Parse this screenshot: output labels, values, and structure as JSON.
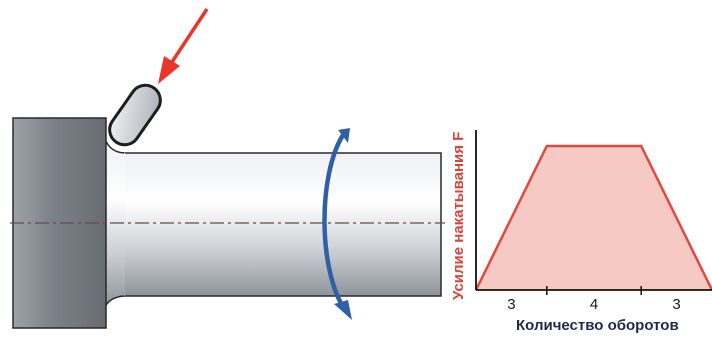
{
  "chart_data": {
    "type": "area",
    "title": "",
    "xlabel": "Количество оборотов",
    "ylabel": "Усилие накатывания F",
    "segments": [
      {
        "label": "3",
        "revolutions": 3,
        "phase": "ramp-up"
      },
      {
        "label": "4",
        "revolutions": 4,
        "phase": "constant"
      },
      {
        "label": "3",
        "revolutions": 3,
        "phase": "ramp-down"
      }
    ],
    "profile": {
      "x": [
        0,
        3,
        7,
        10
      ],
      "y": [
        0,
        1,
        1,
        0
      ]
    },
    "fill_color": "#f6c9c5",
    "line_color": "#e04a3c"
  },
  "diagram": {
    "shaft_color": "#c9ccd2",
    "arrow_force_color": "#e8362a",
    "rotation_arrow_color": "#2f5fa5",
    "icons": [
      "force-arrow-icon",
      "rotation-arrow-icon",
      "roller-icon"
    ]
  }
}
